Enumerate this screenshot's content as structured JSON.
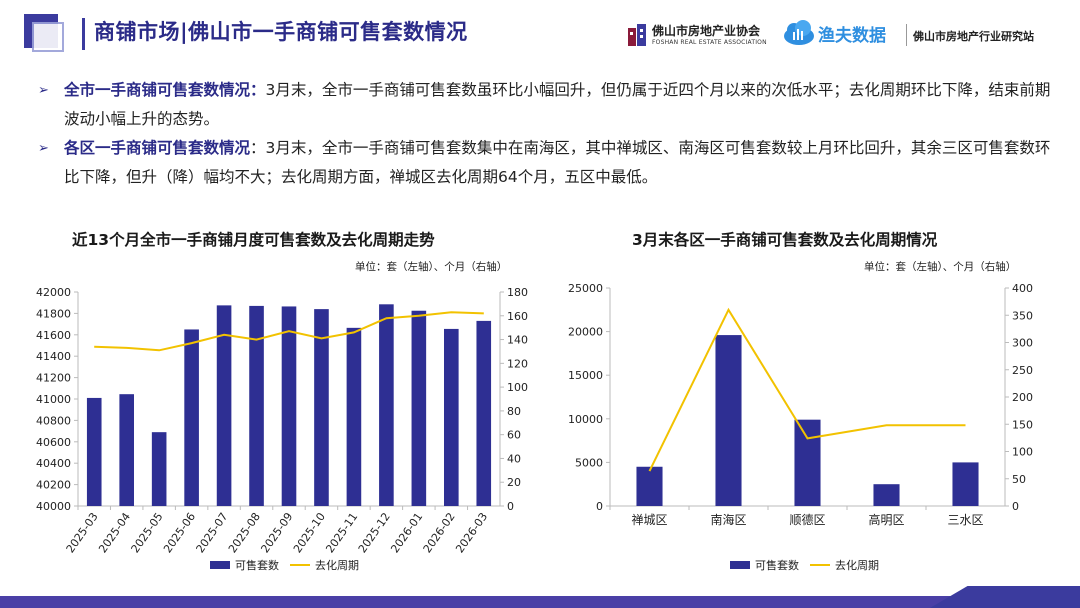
{
  "header": {
    "title": "商铺市场|佛山市一手商铺可售套数情况",
    "org1_cn": "佛山市房地产业协会",
    "org1_en": "FOSHAN REAL ESTATE ASSOCIATION",
    "org2_brand": "渔夫数据",
    "org3": "佛山市房地产行业研究站"
  },
  "bullets": [
    {
      "head": "全市一手商铺可售套数情况：",
      "text": "3月末，全市一手商铺可售套数虽环比小幅回升，但仍属于近四个月以来的次低水平；去化周期环比下降，结束前期波动小幅上升的态势。"
    },
    {
      "head": "各区一手商铺可售套数情况",
      "text": "：3月末，全市一手商铺可售套数集中在南海区，其中禅城区、南海区可售套数较上月环比回升，其余三区可售套数环比下降，但升（降）幅均不大；去化周期方面，禅城区去化周期64个月，五区中最低。"
    }
  ],
  "colors": {
    "bar": "#2e2f93",
    "line": "#f2c200",
    "accent": "#2b2b88"
  },
  "chart_data": [
    {
      "type": "bar",
      "title": "近13个月全市一手商铺月度可售套数及去化周期走势",
      "unit": "单位：套（左轴）、个月（右轴）",
      "categories": [
        "2025-03",
        "2025-04",
        "2025-05",
        "2025-06",
        "2025-07",
        "2025-08",
        "2025-09",
        "2025-10",
        "2025-11",
        "2025-12",
        "2026-01",
        "2026-02",
        "2026-03"
      ],
      "series": [
        {
          "name": "可售套数",
          "axis": "left",
          "type": "bar",
          "values": [
            41010,
            41045,
            40690,
            41650,
            41875,
            41870,
            41865,
            41840,
            41665,
            41885,
            41825,
            41655,
            41730
          ]
        },
        {
          "name": "去化周期",
          "axis": "right",
          "type": "line",
          "values": [
            134,
            133,
            131,
            137,
            144,
            140,
            147,
            141,
            146,
            158,
            160,
            163,
            162
          ]
        }
      ],
      "ylim_left": [
        40000,
        42000
      ],
      "yticks_left": [
        40000,
        40200,
        40400,
        40600,
        40800,
        41000,
        41200,
        41400,
        41600,
        41800,
        42000
      ],
      "ylim_right": [
        0,
        180
      ],
      "yticks_right": [
        0,
        20,
        40,
        60,
        80,
        100,
        120,
        140,
        160,
        180
      ],
      "legend": "bottom"
    },
    {
      "type": "bar",
      "title": "3月末各区一手商铺可售套数及去化周期情况",
      "unit": "单位：套（左轴）、个月（右轴）",
      "categories": [
        "禅城区",
        "南海区",
        "顺德区",
        "高明区",
        "三水区"
      ],
      "series": [
        {
          "name": "可售套数",
          "axis": "left",
          "type": "bar",
          "values": [
            4500,
            19600,
            9900,
            2500,
            5000
          ]
        },
        {
          "name": "去化周期",
          "axis": "right",
          "type": "line",
          "values": [
            64,
            360,
            124,
            148,
            148
          ]
        }
      ],
      "ylim_left": [
        0,
        25000
      ],
      "yticks_left": [
        0,
        5000,
        10000,
        15000,
        20000,
        25000
      ],
      "ylim_right": [
        0,
        400
      ],
      "yticks_right": [
        0,
        50,
        100,
        150,
        200,
        250,
        300,
        350,
        400
      ],
      "legend": "bottom"
    }
  ]
}
